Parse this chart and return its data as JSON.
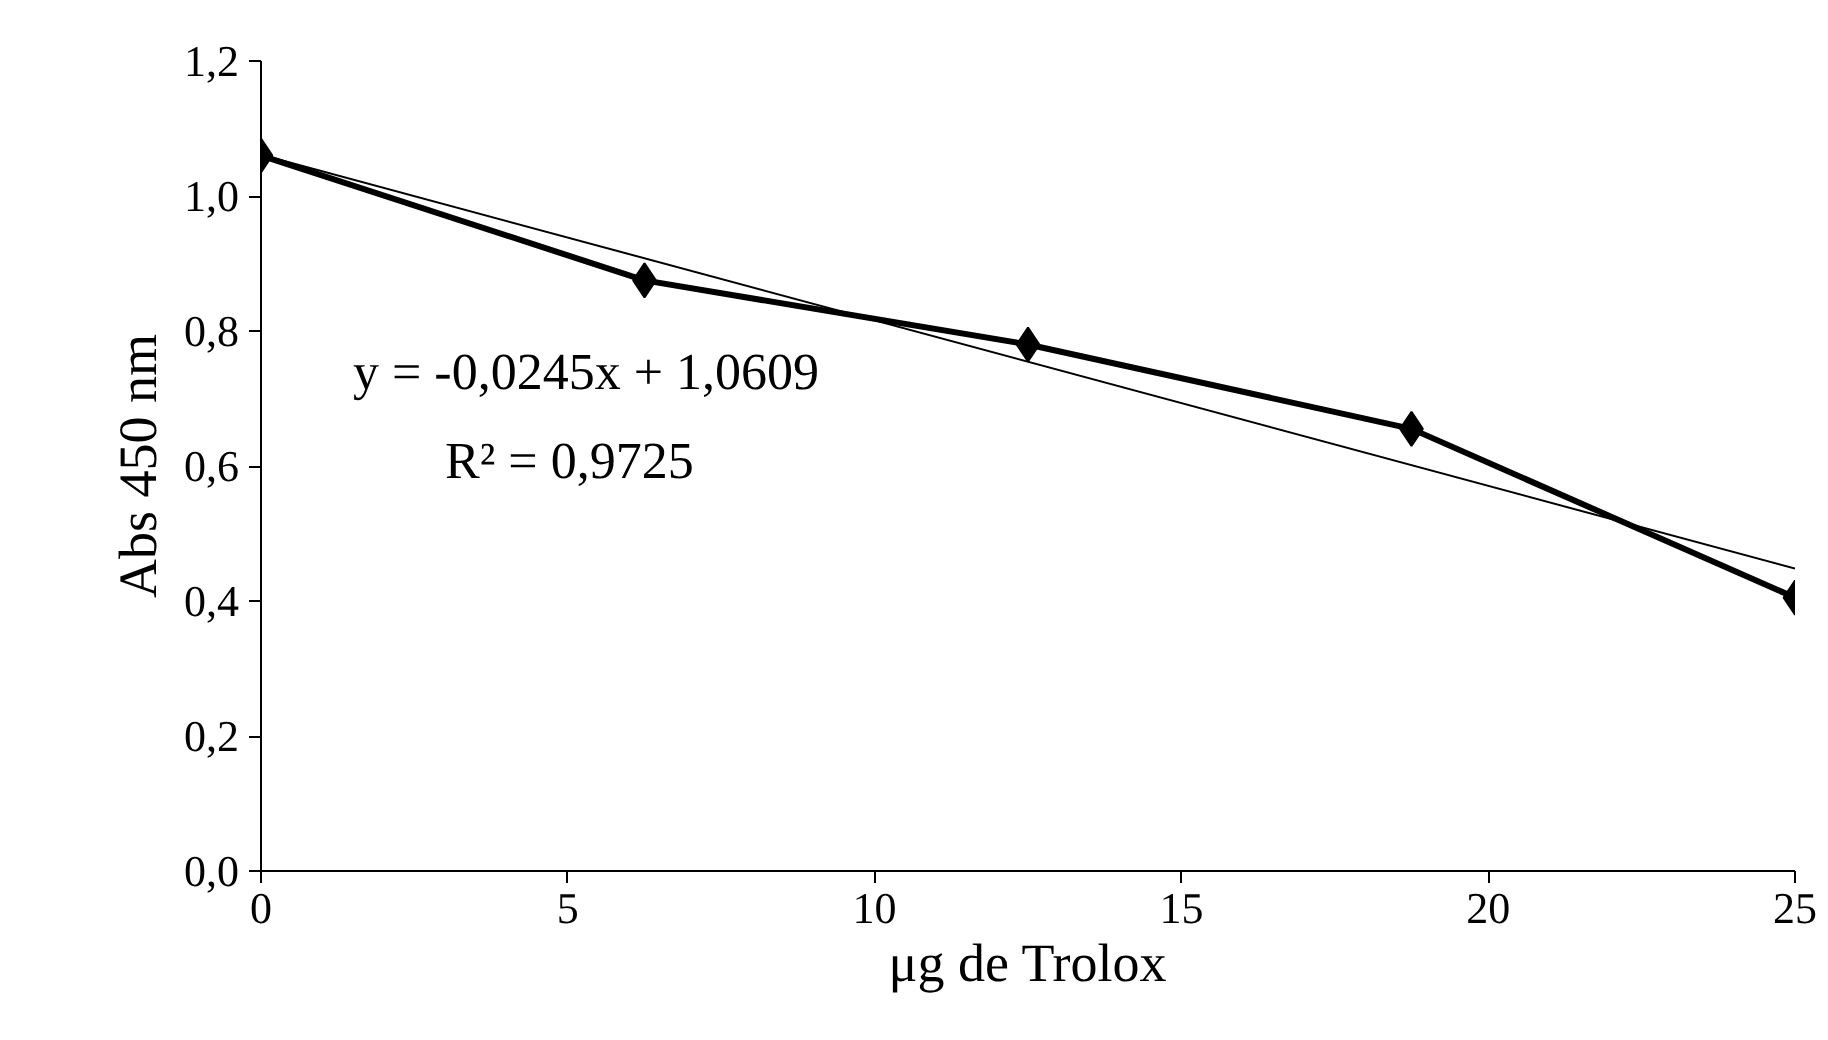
{
  "chart_data": {
    "type": "line",
    "xlabel": "μg de Trolox",
    "ylabel": "Abs 450 nm",
    "xlim": [
      0,
      25
    ],
    "ylim": [
      0,
      1.2
    ],
    "xticks": [
      0,
      5,
      10,
      15,
      20,
      25
    ],
    "yticks": [
      {
        "value": 0,
        "label": "0,0"
      },
      {
        "value": 0.2,
        "label": "0,2"
      },
      {
        "value": 0.4,
        "label": "0,4"
      },
      {
        "value": 0.6,
        "label": "0,6"
      },
      {
        "value": 0.8,
        "label": "0,8"
      },
      {
        "value": 1.0,
        "label": "1,0"
      },
      {
        "value": 1.2,
        "label": "1,2"
      }
    ],
    "grid": false,
    "series": [
      {
        "color": "#000000",
        "x": [
          0,
          6.25,
          12.5,
          18.75,
          25
        ],
        "values": [
          1.06,
          0.875,
          0.78,
          0.655,
          0.405
        ],
        "marker": "diamond",
        "line_style": "solid"
      },
      {
        "color": "#000000",
        "x": [
          0,
          25
        ],
        "values": [
          1.061,
          0.448
        ],
        "line_style": "solid"
      }
    ],
    "annotations": [
      "y = -0,0245x + 1,0609",
      "R² = 0,9725"
    ]
  }
}
